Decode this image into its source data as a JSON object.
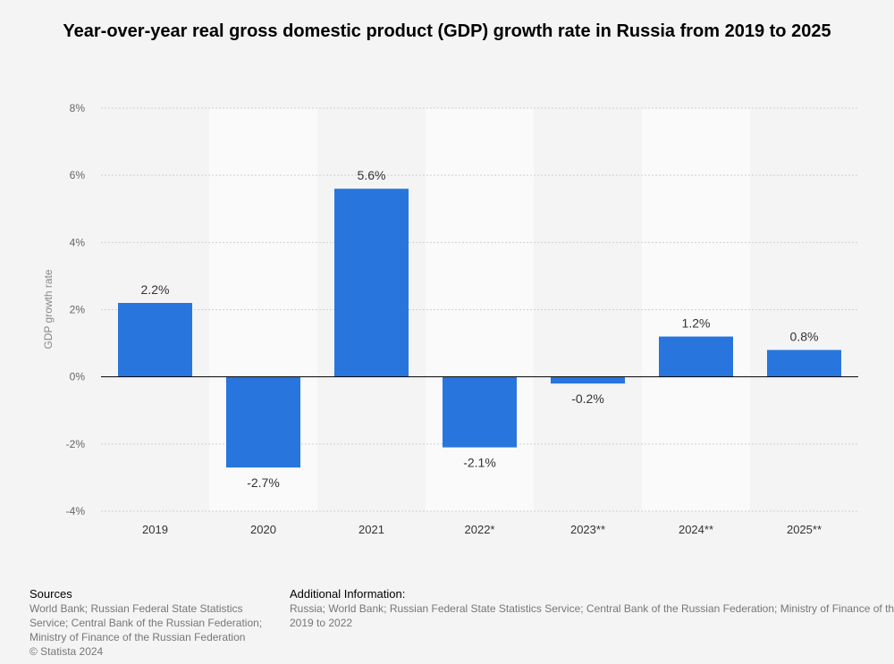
{
  "title": "Year-over-year real gross domestic product (GDP) growth rate in Russia from 2019 to 2025",
  "footer": {
    "sources_heading": "Sources",
    "sources_lines": [
      "World Bank; Russian Federal State Statistics",
      "Service; Central Bank of the Russian Federation;",
      "Ministry of Finance of the Russian Federation"
    ],
    "copyright": "© Statista 2024",
    "additional_heading": "Additional Information:",
    "additional_lines": [
      "Russia; World Bank; Russian Federal State Statistics Service; Central Bank of the Russian Federation; Ministry of Finance of the Russian Federation;",
      "2019 to 2022"
    ]
  },
  "chart_data": {
    "type": "bar",
    "title": "Year-over-year real gross domestic product (GDP) growth rate in Russia from 2019 to 2025",
    "xlabel": "",
    "ylabel": "GDP growth rate",
    "categories": [
      "2019",
      "2020",
      "2021",
      "2022*",
      "2023**",
      "2024**",
      "2025**"
    ],
    "values": [
      2.2,
      -2.7,
      5.6,
      -2.1,
      -0.2,
      1.2,
      0.8
    ],
    "data_labels": [
      "2.2%",
      "-2.7%",
      "5.6%",
      "-2.1%",
      "-0.2%",
      "1.2%",
      "0.8%"
    ],
    "ylim": [
      -4,
      8
    ],
    "y_ticks": [
      8,
      6,
      4,
      2,
      0,
      -2,
      -4
    ],
    "y_tick_labels": [
      "8%",
      "6%",
      "4%",
      "2%",
      "0%",
      "-2%",
      "-4%"
    ],
    "grid": true,
    "legend": "none",
    "bar_color": "#2876dd",
    "band_color": "#fafafa",
    "zero_line_color": "#000000"
  }
}
